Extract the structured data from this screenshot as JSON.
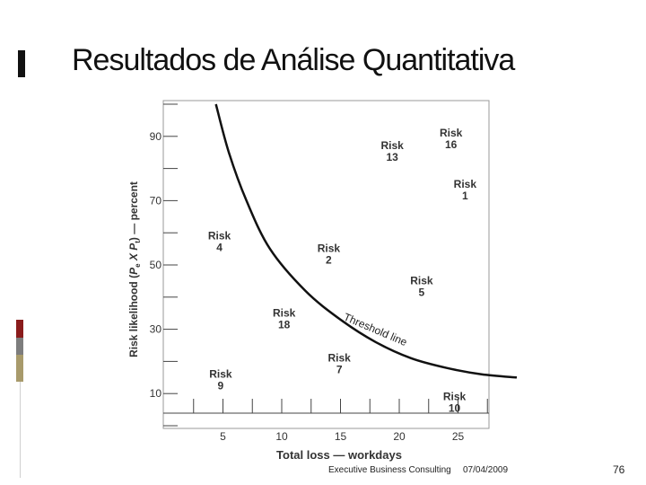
{
  "slide": {
    "title": "Resultados de Análise Quantitativa",
    "footer_brand": "Executive Business Consulting",
    "footer_date": "07/04/2009",
    "page_number": "76"
  },
  "chart_data": {
    "type": "scatter",
    "title": "",
    "xlabel": "Total loss — workdays",
    "ylabel": "Risk likelihood (Pe X Pt) — percent",
    "xlim": [
      0,
      30
    ],
    "ylim": [
      0,
      100
    ],
    "x_ticks": [
      5,
      10,
      15,
      20,
      25
    ],
    "y_ticks": [
      10,
      30,
      50,
      70,
      90
    ],
    "grid": false,
    "points": [
      {
        "label": [
          "Risk",
          "16"
        ],
        "x": 24.4,
        "y": 90
      },
      {
        "label": [
          "Risk",
          "13"
        ],
        "x": 19.4,
        "y": 86
      },
      {
        "label": [
          "Risk",
          "1"
        ],
        "x": 25.6,
        "y": 74
      },
      {
        "label": [
          "Risk",
          "4"
        ],
        "x": 4.7,
        "y": 58
      },
      {
        "label": [
          "Risk",
          "2"
        ],
        "x": 14.0,
        "y": 54
      },
      {
        "label": [
          "Risk",
          "5"
        ],
        "x": 21.9,
        "y": 44
      },
      {
        "label": [
          "Risk",
          "18"
        ],
        "x": 10.2,
        "y": 34
      },
      {
        "label": [
          "Risk",
          "7"
        ],
        "x": 14.9,
        "y": 20
      },
      {
        "label": [
          "Risk",
          "9"
        ],
        "x": 4.8,
        "y": 15
      },
      {
        "label": [
          "Risk",
          "10"
        ],
        "x": 24.7,
        "y": 8
      }
    ],
    "threshold_line": {
      "label": "Threshold line",
      "points": [
        [
          4.4,
          100
        ],
        [
          5.5,
          85
        ],
        [
          7,
          70
        ],
        [
          9,
          55
        ],
        [
          12,
          42
        ],
        [
          15,
          33
        ],
        [
          18,
          26
        ],
        [
          21,
          21
        ],
        [
          24,
          18
        ],
        [
          27,
          16
        ],
        [
          30,
          15
        ]
      ]
    }
  }
}
